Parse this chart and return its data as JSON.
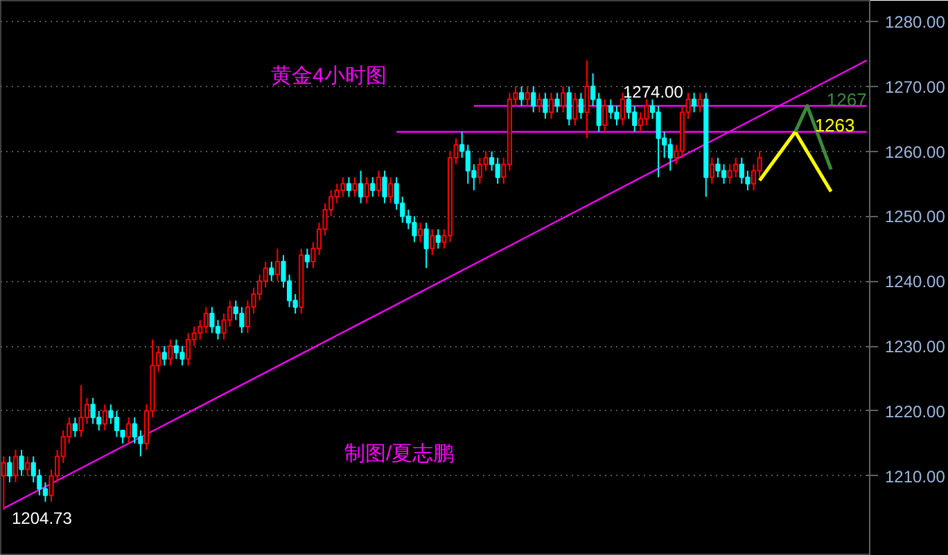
{
  "chart_data": {
    "type": "candlestick",
    "title": "黄金4小时图",
    "annotations": [
      "制图/夏志鹏",
      "1274.00",
      "1204.73"
    ],
    "categories": [
      null,
      null,
      null,
      null,
      null,
      null,
      null,
      null,
      null,
      null,
      null,
      null,
      null,
      null,
      null,
      null,
      null,
      null,
      null,
      null,
      null,
      null,
      null,
      null,
      null,
      null,
      null,
      null,
      null,
      null,
      null,
      null,
      null,
      null,
      null,
      null,
      null,
      null,
      null,
      null,
      null,
      null,
      null,
      null,
      null,
      null,
      null,
      null,
      null,
      null,
      null,
      null,
      null,
      null,
      null,
      null,
      null,
      null,
      null,
      null,
      null,
      null,
      null,
      null,
      null,
      null,
      null,
      null,
      null,
      null,
      null,
      null,
      null,
      null,
      null,
      null,
      null,
      null,
      null,
      null,
      null,
      null,
      null,
      null,
      null,
      null,
      null,
      null,
      null,
      null,
      null,
      null,
      null,
      null,
      null,
      null,
      null,
      null,
      null,
      null,
      null,
      null,
      null,
      null,
      null,
      null,
      null,
      null,
      null,
      null,
      null,
      null,
      null,
      null,
      null,
      null,
      null,
      null,
      null,
      null,
      null,
      null,
      null,
      null,
      null,
      null,
      null,
      null,
      null,
      null,
      null,
      null,
      null,
      null,
      null,
      null,
      null,
      null,
      null,
      null,
      null,
      null,
      null,
      null,
      null,
      null
    ],
    "ohlc": [
      [
        1210,
        1213,
        1204.73,
        1212
      ],
      [
        1212,
        1213,
        1209,
        1210
      ],
      [
        1210,
        1214,
        1209,
        1213
      ],
      [
        1213,
        1214,
        1210,
        1211
      ],
      [
        1211,
        1213,
        1210,
        1212
      ],
      [
        1212,
        1213,
        1209,
        1210
      ],
      [
        1210,
        1211,
        1207,
        1208
      ],
      [
        1208,
        1209,
        1206,
        1207
      ],
      [
        1207,
        1211,
        1206,
        1210
      ],
      [
        1210,
        1214,
        1209,
        1213
      ],
      [
        1213,
        1217,
        1212,
        1216
      ],
      [
        1216,
        1219,
        1215,
        1218
      ],
      [
        1218,
        1219,
        1216,
        1217
      ],
      [
        1217,
        1224,
        1216,
        1219
      ],
      [
        1219,
        1222,
        1218,
        1221
      ],
      [
        1221,
        1222,
        1218,
        1219
      ],
      [
        1219,
        1220,
        1217,
        1218
      ],
      [
        1218,
        1221,
        1217,
        1220
      ],
      [
        1220,
        1221,
        1218,
        1219
      ],
      [
        1219,
        1220,
        1216,
        1217
      ],
      [
        1217,
        1217,
        1215,
        1216
      ],
      [
        1216,
        1219,
        1215,
        1218
      ],
      [
        1218,
        1219,
        1215,
        1216
      ],
      [
        1216,
        1217,
        1213,
        1215
      ],
      [
        1215,
        1221,
        1214,
        1220
      ],
      [
        1220,
        1231,
        1219,
        1227
      ],
      [
        1227,
        1230,
        1226,
        1229
      ],
      [
        1229,
        1230,
        1227,
        1228
      ],
      [
        1228,
        1231,
        1227,
        1230
      ],
      [
        1230,
        1231,
        1228,
        1229
      ],
      [
        1229,
        1230,
        1227,
        1228
      ],
      [
        1228,
        1232,
        1227,
        1231
      ],
      [
        1231,
        1233,
        1230,
        1232
      ],
      [
        1232,
        1234,
        1231,
        1233
      ],
      [
        1233,
        1236,
        1232,
        1235
      ],
      [
        1235,
        1236,
        1232,
        1233
      ],
      [
        1233,
        1234,
        1231,
        1232
      ],
      [
        1232,
        1235,
        1231,
        1234
      ],
      [
        1234,
        1237,
        1233,
        1236
      ],
      [
        1236,
        1237,
        1234,
        1235
      ],
      [
        1235,
        1236,
        1232,
        1233
      ],
      [
        1233,
        1237,
        1232,
        1236
      ],
      [
        1236,
        1239,
        1235,
        1238
      ],
      [
        1238,
        1241,
        1237,
        1240
      ],
      [
        1240,
        1243,
        1239,
        1242
      ],
      [
        1242,
        1243,
        1240,
        1241
      ],
      [
        1241,
        1245,
        1240,
        1243
      ],
      [
        1243,
        1244,
        1239,
        1240
      ],
      [
        1240,
        1241,
        1236,
        1237
      ],
      [
        1237,
        1238,
        1235,
        1236
      ],
      [
        1236,
        1245,
        1235,
        1244
      ],
      [
        1244,
        1245,
        1242,
        1243
      ],
      [
        1243,
        1246,
        1242,
        1245
      ],
      [
        1245,
        1249,
        1244,
        1248
      ],
      [
        1248,
        1252,
        1247,
        1251
      ],
      [
        1251,
        1254,
        1250,
        1253
      ],
      [
        1253,
        1255,
        1252,
        1254
      ],
      [
        1254,
        1256,
        1253,
        1255
      ],
      [
        1255,
        1256,
        1253,
        1254
      ],
      [
        1254,
        1256,
        1253,
        1255
      ],
      [
        1255,
        1257,
        1252,
        1253
      ],
      [
        1253,
        1256,
        1252,
        1255
      ],
      [
        1255,
        1256,
        1253,
        1254
      ],
      [
        1254,
        1257,
        1253,
        1256
      ],
      [
        1256,
        1257,
        1252,
        1253
      ],
      [
        1253,
        1256,
        1252,
        1255
      ],
      [
        1255,
        1256,
        1251,
        1252
      ],
      [
        1252,
        1253,
        1249,
        1250
      ],
      [
        1250,
        1251,
        1248,
        1249
      ],
      [
        1249,
        1250,
        1246,
        1247
      ],
      [
        1247,
        1249,
        1246,
        1248
      ],
      [
        1248,
        1249,
        1242,
        1245
      ],
      [
        1245,
        1248,
        1244,
        1247
      ],
      [
        1247,
        1248,
        1245,
        1246
      ],
      [
        1246,
        1248,
        1245,
        1247
      ],
      [
        1247,
        1260,
        1246,
        1259
      ],
      [
        1259,
        1262,
        1258,
        1261
      ],
      [
        1261,
        1263,
        1259,
        1260
      ],
      [
        1260,
        1261,
        1255,
        1257
      ],
      [
        1257,
        1258,
        1254,
        1256
      ],
      [
        1256,
        1259,
        1255,
        1258
      ],
      [
        1258,
        1260,
        1257,
        1259
      ],
      [
        1259,
        1260,
        1257,
        1258
      ],
      [
        1258,
        1259,
        1255,
        1256
      ],
      [
        1256,
        1259,
        1255,
        1258
      ],
      [
        1258,
        1269,
        1257,
        1268
      ],
      [
        1268,
        1270,
        1267,
        1269
      ],
      [
        1269,
        1270,
        1267,
        1268
      ],
      [
        1268,
        1270,
        1267,
        1269
      ],
      [
        1269,
        1270,
        1266,
        1267
      ],
      [
        1267,
        1269,
        1266,
        1268
      ],
      [
        1268,
        1269,
        1265,
        1266
      ],
      [
        1266,
        1269,
        1265,
        1268
      ],
      [
        1268,
        1269,
        1266,
        1267
      ],
      [
        1267,
        1270,
        1266,
        1269
      ],
      [
        1269,
        1270,
        1264,
        1265
      ],
      [
        1265,
        1269,
        1264,
        1268
      ],
      [
        1268,
        1269,
        1265,
        1266
      ],
      [
        1266,
        1274,
        1262,
        1270
      ],
      [
        1270,
        1272,
        1267,
        1268
      ],
      [
        1268,
        1269,
        1263,
        1264
      ],
      [
        1264,
        1268,
        1263,
        1267
      ],
      [
        1267,
        1268,
        1265,
        1266
      ],
      [
        1266,
        1267,
        1264,
        1265
      ],
      [
        1265,
        1269,
        1264,
        1268
      ],
      [
        1268,
        1269,
        1265,
        1266
      ],
      [
        1266,
        1267,
        1263,
        1264
      ],
      [
        1264,
        1266,
        1263,
        1265
      ],
      [
        1265,
        1268,
        1264,
        1267
      ],
      [
        1267,
        1268,
        1265,
        1266
      ],
      [
        1266,
        1267,
        1256,
        1262
      ],
      [
        1262,
        1263,
        1259,
        1261
      ],
      [
        1261,
        1262,
        1257,
        1259
      ],
      [
        1259,
        1261,
        1258,
        1260
      ],
      [
        1260,
        1267,
        1259,
        1266
      ],
      [
        1266,
        1269,
        1265,
        1268
      ],
      [
        1268,
        1269,
        1266,
        1267
      ],
      [
        1267,
        1269,
        1266,
        1268
      ],
      [
        1268,
        1269,
        1253,
        1256
      ],
      [
        1256,
        1259,
        1255,
        1258
      ],
      [
        1258,
        1259,
        1256,
        1257
      ],
      [
        1257,
        1258,
        1255,
        1256
      ],
      [
        1256,
        1258,
        1255,
        1257
      ],
      [
        1257,
        1259,
        1256,
        1258
      ],
      [
        1258,
        1259,
        1255,
        1256
      ],
      [
        1256,
        1257,
        1254,
        1255
      ],
      [
        1255,
        1258,
        1254,
        1257
      ],
      [
        1257,
        1260,
        1256,
        1259
      ],
      null,
      null,
      null,
      null,
      null,
      null,
      null,
      null,
      null,
      null,
      null,
      null,
      null,
      null,
      null,
      null,
      null,
      null
    ],
    "colors": [
      "#ff0000",
      "#00ffff",
      "#ff0000",
      "#00ffff",
      "#ff0000",
      "#00ffff",
      "#00ffff",
      "#00ffff",
      "#ff0000",
      "#ff0000",
      "#ff0000",
      "#ff0000",
      "#00ffff",
      "#ff0000",
      "#ff0000",
      "#00ffff",
      "#00ffff",
      "#ff0000",
      "#00ffff",
      "#00ffff",
      "#00ffff",
      "#ff0000",
      "#00ffff",
      "#00ffff",
      "#ff0000",
      "#ff0000",
      "#ff0000",
      "#00ffff",
      "#ff0000",
      "#00ffff",
      "#00ffff",
      "#ff0000",
      "#ff0000",
      "#ff0000",
      "#ff0000",
      "#00ffff",
      "#00ffff",
      "#ff0000",
      "#ff0000",
      "#00ffff",
      "#00ffff",
      "#ff0000",
      "#ff0000",
      "#ff0000",
      "#ff0000",
      "#00ffff",
      "#ff0000",
      "#00ffff",
      "#00ffff",
      "#00ffff",
      "#ff0000",
      "#00ffff",
      "#ff0000",
      "#ff0000",
      "#ff0000",
      "#ff0000",
      "#ff0000",
      "#ff0000",
      "#00ffff",
      "#ff0000",
      "#00ffff",
      "#ff0000",
      "#00ffff",
      "#ff0000",
      "#00ffff",
      "#ff0000",
      "#00ffff",
      "#00ffff",
      "#00ffff",
      "#00ffff",
      "#ff0000",
      "#00ffff",
      "#ff0000",
      "#00ffff",
      "#ff0000",
      "#ff0000",
      "#ff0000",
      "#00ffff",
      "#00ffff",
      "#00ffff",
      "#ff0000",
      "#ff0000",
      "#00ffff",
      "#00ffff",
      "#ff0000",
      "#ff0000",
      "#ff0000",
      "#00ffff",
      "#ff0000",
      "#00ffff",
      "#ff0000",
      "#00ffff",
      "#ff0000",
      "#00ffff",
      "#ff0000",
      "#00ffff",
      "#ff0000",
      "#00ffff",
      "#ff0000",
      "#00ffff",
      "#00ffff",
      "#ff0000",
      "#00ffff",
      "#00ffff",
      "#ff0000",
      "#00ffff",
      "#00ffff",
      "#ff0000",
      "#ff0000",
      "#00ffff",
      "#00ffff",
      "#00ffff",
      "#00ffff",
      "#ff0000",
      "#ff0000",
      "#ff0000",
      "#00ffff",
      "#ff0000",
      "#00ffff",
      "#ff0000",
      "#00ffff",
      "#00ffff",
      "#ff0000",
      "#ff0000",
      "#00ffff",
      "#00ffff",
      "#ff0000",
      "#ff0000",
      null,
      null,
      null,
      null,
      null,
      null,
      null,
      null,
      null,
      null,
      null,
      null,
      null,
      null,
      null,
      null,
      null,
      null
    ],
    "series": [
      {
        "type": "line",
        "color": "#ff00ff",
        "values": [
          1205,
          null,
          null,
          null,
          null,
          null,
          null,
          null,
          null,
          null,
          null,
          null,
          null,
          null,
          null,
          null,
          null,
          null,
          null,
          null,
          null,
          null,
          null,
          null,
          null,
          null,
          null,
          null,
          null,
          null,
          null,
          null,
          null,
          null,
          null,
          null,
          null,
          null,
          null,
          null,
          null,
          null,
          null,
          null,
          null,
          null,
          null,
          null,
          null,
          null,
          null,
          null,
          null,
          null,
          null,
          null,
          null,
          null,
          null,
          null,
          null,
          null,
          null,
          null,
          null,
          null,
          null,
          null,
          null,
          null,
          null,
          null,
          null,
          null,
          null,
          null,
          null,
          null,
          null,
          null,
          null,
          null,
          null,
          null,
          null,
          null,
          null,
          null,
          null,
          null,
          null,
          null,
          null,
          null,
          null,
          null,
          null,
          null,
          null,
          null,
          null,
          null,
          null,
          null,
          null,
          null,
          null,
          null,
          null,
          null,
          null,
          null,
          null,
          null,
          null,
          null,
          null,
          null,
          null,
          null,
          null,
          null,
          null,
          null,
          null,
          null,
          null,
          null,
          null,
          null,
          null,
          null,
          null,
          null,
          null,
          null,
          null,
          null,
          null,
          null,
          null,
          null,
          null,
          null,
          null,
          1274
        ]
      },
      {
        "type": "line",
        "color": "#ff00ff",
        "values": [
          null,
          null,
          null,
          null,
          null,
          null,
          null,
          null,
          null,
          null,
          null,
          null,
          null,
          null,
          null,
          null,
          null,
          null,
          null,
          null,
          null,
          null,
          null,
          null,
          null,
          null,
          null,
          null,
          null,
          null,
          null,
          null,
          null,
          null,
          null,
          null,
          null,
          null,
          null,
          null,
          null,
          null,
          null,
          null,
          null,
          null,
          null,
          null,
          null,
          null,
          null,
          null,
          null,
          null,
          null,
          null,
          null,
          null,
          null,
          null,
          null,
          null,
          null,
          null,
          null,
          null,
          null,
          null,
          null,
          null,
          null,
          null,
          null,
          null,
          null,
          null,
          null,
          null,
          null,
          1267,
          null,
          null,
          null,
          null,
          null,
          null,
          null,
          null,
          null,
          null,
          null,
          null,
          null,
          null,
          null,
          null,
          null,
          null,
          null,
          null,
          null,
          null,
          null,
          null,
          null,
          null,
          null,
          null,
          null,
          null,
          null,
          null,
          null,
          null,
          null,
          null,
          null,
          null,
          null,
          null,
          null,
          null,
          null,
          null,
          null,
          null,
          null,
          null,
          null,
          null,
          null,
          null,
          null,
          null,
          null,
          null,
          null,
          null,
          null,
          null,
          null,
          null,
          null,
          null,
          null,
          1267
        ]
      },
      {
        "type": "line",
        "color": "#ff00ff",
        "values": [
          null,
          null,
          null,
          null,
          null,
          null,
          null,
          null,
          null,
          null,
          null,
          null,
          null,
          null,
          null,
          null,
          null,
          null,
          null,
          null,
          null,
          null,
          null,
          null,
          null,
          null,
          null,
          null,
          null,
          null,
          null,
          null,
          null,
          null,
          null,
          null,
          null,
          null,
          null,
          null,
          null,
          null,
          null,
          null,
          null,
          null,
          null,
          null,
          null,
          null,
          null,
          null,
          null,
          null,
          null,
          null,
          null,
          null,
          null,
          null,
          null,
          null,
          null,
          null,
          null,
          null,
          1263,
          null,
          null,
          null,
          null,
          null,
          null,
          null,
          null,
          null,
          null,
          null,
          null,
          null,
          null,
          null,
          null,
          null,
          null,
          null,
          null,
          null,
          null,
          null,
          null,
          null,
          null,
          null,
          null,
          null,
          null,
          null,
          null,
          null,
          null,
          null,
          null,
          null,
          null,
          null,
          null,
          null,
          null,
          null,
          null,
          null,
          null,
          null,
          null,
          null,
          null,
          null,
          null,
          null,
          null,
          null,
          null,
          null,
          null,
          null,
          null,
          null,
          null,
          null,
          null,
          null,
          null,
          null,
          null,
          null,
          null,
          null,
          null,
          null,
          null,
          null,
          null,
          null,
          null,
          1263
        ]
      },
      {
        "type": "line",
        "name": "1263",
        "color": "#ffff00",
        "values": [
          null,
          null,
          null,
          null,
          null,
          null,
          null,
          null,
          null,
          null,
          null,
          null,
          null,
          null,
          null,
          null,
          null,
          null,
          null,
          null,
          null,
          null,
          null,
          null,
          null,
          null,
          null,
          null,
          null,
          null,
          null,
          null,
          null,
          null,
          null,
          null,
          null,
          null,
          null,
          null,
          null,
          null,
          null,
          null,
          null,
          null,
          null,
          null,
          null,
          null,
          null,
          null,
          null,
          null,
          null,
          null,
          null,
          null,
          null,
          null,
          null,
          null,
          null,
          null,
          null,
          null,
          null,
          null,
          null,
          null,
          null,
          null,
          null,
          null,
          null,
          null,
          null,
          null,
          null,
          null,
          null,
          null,
          null,
          null,
          null,
          null,
          null,
          null,
          null,
          null,
          null,
          null,
          null,
          null,
          null,
          null,
          null,
          null,
          null,
          null,
          null,
          null,
          null,
          null,
          null,
          null,
          null,
          null,
          null,
          null,
          null,
          null,
          null,
          null,
          null,
          null,
          null,
          null,
          null,
          null,
          null,
          null,
          null,
          null,
          null,
          null,
          null,
          1255.5,
          null,
          null,
          null,
          null,
          null,
          1263,
          null,
          null,
          null,
          null,
          null,
          1253.8,
          null,
          null,
          null,
          null,
          null,
          null
        ]
      },
      {
        "type": "line",
        "name": "1267",
        "color": "#3a8a3a",
        "values": [
          null,
          null,
          null,
          null,
          null,
          null,
          null,
          null,
          null,
          null,
          null,
          null,
          null,
          null,
          null,
          null,
          null,
          null,
          null,
          null,
          null,
          null,
          null,
          null,
          null,
          null,
          null,
          null,
          null,
          null,
          null,
          null,
          null,
          null,
          null,
          null,
          null,
          null,
          null,
          null,
          null,
          null,
          null,
          null,
          null,
          null,
          null,
          null,
          null,
          null,
          null,
          null,
          null,
          null,
          null,
          null,
          null,
          null,
          null,
          null,
          null,
          null,
          null,
          null,
          null,
          null,
          null,
          null,
          null,
          null,
          null,
          null,
          null,
          null,
          null,
          null,
          null,
          null,
          null,
          null,
          null,
          null,
          null,
          null,
          null,
          null,
          null,
          null,
          null,
          null,
          null,
          null,
          null,
          null,
          null,
          null,
          null,
          null,
          null,
          null,
          null,
          null,
          null,
          null,
          null,
          null,
          null,
          null,
          null,
          null,
          null,
          null,
          null,
          null,
          null,
          null,
          null,
          null,
          null,
          null,
          null,
          null,
          null,
          null,
          null,
          null,
          null,
          null,
          null,
          null,
          null,
          null,
          null,
          1263,
          null,
          1267,
          null,
          null,
          null,
          1257.2,
          null,
          null,
          null,
          null,
          null,
          null
        ]
      }
    ],
    "ylim": [
      1197.7,
      1283.2
    ],
    "yticks": [
      {
        "value": 1210,
        "label": "1210.00"
      },
      {
        "value": 1220,
        "label": "1220.00"
      },
      {
        "value": 1230,
        "label": "1230.00"
      },
      {
        "value": 1240,
        "label": "1240.00"
      },
      {
        "value": 1250,
        "label": "1250.00"
      },
      {
        "value": 1260,
        "label": "1260.00"
      },
      {
        "value": 1270,
        "label": "1270.00"
      },
      {
        "value": 1280,
        "label": "1280.00"
      }
    ],
    "grid": "y",
    "tick_labels": "y",
    "marker": "none",
    "line_style": "solid"
  }
}
